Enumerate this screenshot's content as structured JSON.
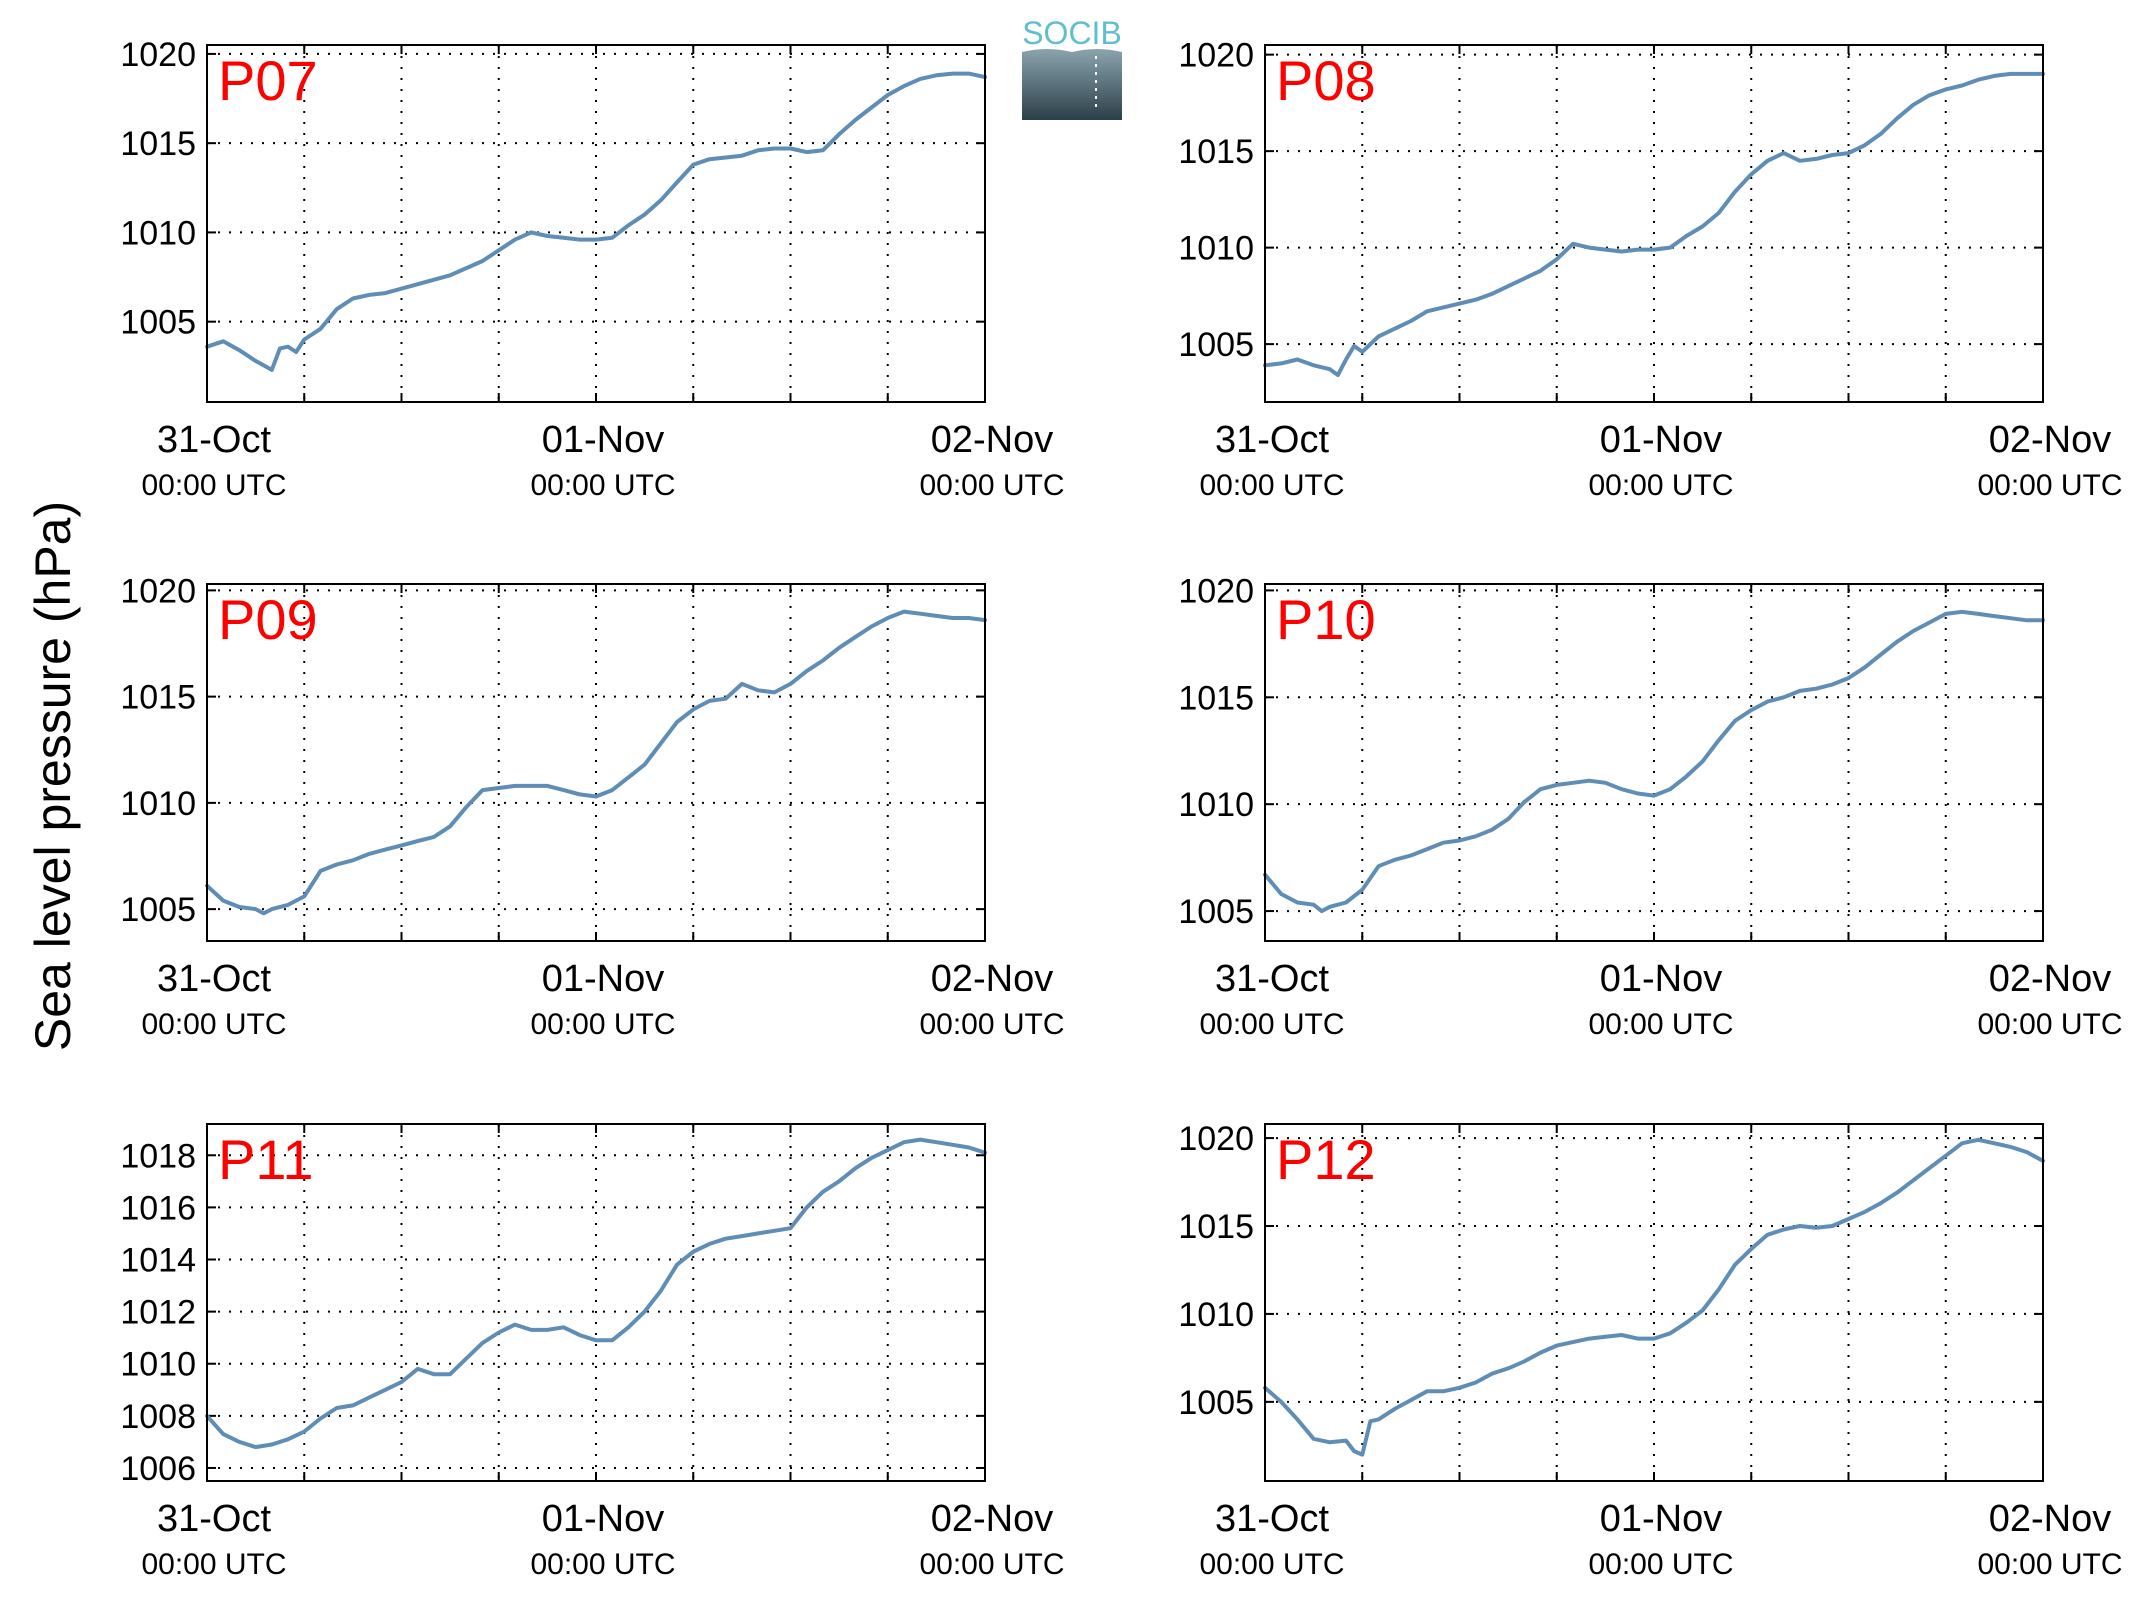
{
  "ylabel": "Sea level pressure (hPa)",
  "logo": {
    "text": "SOCIB"
  },
  "colors": {
    "line": "#5f8db5",
    "station_label": "#ff0000",
    "axis": "#000000",
    "grid": "#000000",
    "logo_text": "#5fbfd0",
    "logo_top": "#8aa4ad",
    "logo_bottom": "#2c3f49"
  },
  "chart_data": [
    {
      "type": "line",
      "station": "P07",
      "x_ticks": [
        {
          "date": "31-Oct",
          "time": "00:00 UTC"
        },
        {
          "date": "01-Nov",
          "time": "00:00 UTC"
        },
        {
          "date": "02-Nov",
          "time": "00:00 UTC"
        }
      ],
      "xlim_hours": [
        0,
        48
      ],
      "ylim": [
        1000.5,
        1020.5
      ],
      "yticks": [
        1005,
        1010,
        1015,
        1020
      ],
      "grid": true,
      "hours": [
        0,
        1,
        2,
        3,
        4,
        4.5,
        5,
        5.5,
        6,
        7,
        8,
        9,
        10,
        11,
        13,
        15,
        17,
        19,
        20,
        21,
        22,
        23,
        24,
        25,
        26,
        27,
        28,
        29,
        30,
        31,
        32,
        33,
        34,
        35,
        36,
        37,
        38,
        39,
        40,
        41,
        42,
        43,
        44,
        45,
        46,
        47,
        48
      ],
      "values": [
        1003.6,
        1003.9,
        1003.4,
        1002.8,
        1002.3,
        1003.5,
        1003.6,
        1003.3,
        1004.0,
        1004.6,
        1005.7,
        1006.3,
        1006.5,
        1006.6,
        1007.1,
        1007.6,
        1008.4,
        1009.6,
        1010.0,
        1009.8,
        1009.7,
        1009.6,
        1009.6,
        1009.7,
        1010.4,
        1011.0,
        1011.8,
        1012.8,
        1013.8,
        1014.1,
        1014.2,
        1014.3,
        1014.6,
        1014.7,
        1014.7,
        1014.5,
        1014.6,
        1015.5,
        1016.3,
        1017.0,
        1017.7,
        1018.2,
        1018.6,
        1018.8,
        1018.9,
        1018.9,
        1018.7
      ]
    },
    {
      "type": "line",
      "station": "P08",
      "x_ticks": [
        {
          "date": "31-Oct",
          "time": "00:00 UTC"
        },
        {
          "date": "01-Nov",
          "time": "00:00 UTC"
        },
        {
          "date": "02-Nov",
          "time": "00:00 UTC"
        }
      ],
      "xlim_hours": [
        0,
        48
      ],
      "ylim": [
        1002,
        1020.5
      ],
      "yticks": [
        1005,
        1010,
        1015,
        1020
      ],
      "grid": true,
      "hours": [
        0,
        1,
        2,
        3,
        4,
        4.5,
        5,
        5.5,
        6,
        7,
        8,
        9,
        10,
        11,
        12,
        13,
        14,
        15,
        16,
        17,
        18,
        19,
        20,
        21,
        22,
        23,
        24,
        25,
        26,
        27,
        28,
        29,
        30,
        31,
        32,
        33,
        34,
        35,
        36,
        37,
        38,
        39,
        40,
        41,
        42,
        43,
        44,
        45,
        46,
        47,
        48
      ],
      "values": [
        1003.9,
        1004.0,
        1004.2,
        1003.9,
        1003.7,
        1003.4,
        1004.2,
        1004.9,
        1004.6,
        1005.4,
        1005.8,
        1006.2,
        1006.7,
        1006.9,
        1007.1,
        1007.3,
        1007.6,
        1008.0,
        1008.4,
        1008.8,
        1009.4,
        1010.2,
        1010.0,
        1009.9,
        1009.8,
        1009.9,
        1009.9,
        1010.0,
        1010.6,
        1011.1,
        1011.8,
        1012.9,
        1013.8,
        1014.5,
        1014.9,
        1014.5,
        1014.6,
        1014.8,
        1014.9,
        1015.3,
        1015.9,
        1016.7,
        1017.4,
        1017.9,
        1018.2,
        1018.4,
        1018.7,
        1018.9,
        1019.0,
        1019.0,
        1019.0
      ]
    },
    {
      "type": "line",
      "station": "P09",
      "x_ticks": [
        {
          "date": "31-Oct",
          "time": "00:00 UTC"
        },
        {
          "date": "01-Nov",
          "time": "00:00 UTC"
        },
        {
          "date": "02-Nov",
          "time": "00:00 UTC"
        }
      ],
      "xlim_hours": [
        0,
        48
      ],
      "ylim": [
        1003.5,
        1020.3
      ],
      "yticks": [
        1005,
        1010,
        1015,
        1020
      ],
      "grid": true,
      "hours": [
        0,
        1,
        2,
        3,
        3.5,
        4,
        5,
        6,
        7,
        8,
        9,
        10,
        11,
        12,
        13,
        14,
        15,
        16,
        17,
        18,
        19,
        20,
        21,
        22,
        23,
        24,
        25,
        26,
        27,
        28,
        29,
        30,
        31,
        32,
        33,
        34,
        35,
        36,
        37,
        38,
        39,
        40,
        41,
        42,
        43,
        44,
        45,
        46,
        47,
        48
      ],
      "values": [
        1006.1,
        1005.4,
        1005.1,
        1005.0,
        1004.8,
        1005.0,
        1005.2,
        1005.6,
        1006.8,
        1007.1,
        1007.3,
        1007.6,
        1007.8,
        1008.0,
        1008.2,
        1008.4,
        1008.9,
        1009.8,
        1010.6,
        1010.7,
        1010.8,
        1010.8,
        1010.8,
        1010.6,
        1010.4,
        1010.3,
        1010.6,
        1011.2,
        1011.8,
        1012.8,
        1013.8,
        1014.4,
        1014.8,
        1014.9,
        1015.6,
        1015.3,
        1015.2,
        1015.6,
        1016.2,
        1016.7,
        1017.3,
        1017.8,
        1018.3,
        1018.7,
        1019.0,
        1018.9,
        1018.8,
        1018.7,
        1018.7,
        1018.6
      ]
    },
    {
      "type": "line",
      "station": "P10",
      "x_ticks": [
        {
          "date": "31-Oct",
          "time": "00:00 UTC"
        },
        {
          "date": "01-Nov",
          "time": "00:00 UTC"
        },
        {
          "date": "02-Nov",
          "time": "00:00 UTC"
        }
      ],
      "xlim_hours": [
        0,
        48
      ],
      "ylim": [
        1003.6,
        1020.3
      ],
      "yticks": [
        1005,
        1010,
        1015,
        1020
      ],
      "grid": true,
      "hours": [
        0,
        1,
        2,
        3,
        3.5,
        4,
        5,
        6,
        7,
        8,
        9,
        10,
        11,
        12,
        13,
        14,
        15,
        16,
        17,
        18,
        19,
        20,
        21,
        22,
        23,
        24,
        25,
        26,
        27,
        28,
        29,
        30,
        31,
        32,
        33,
        34,
        35,
        36,
        37,
        38,
        39,
        40,
        41,
        42,
        43,
        44,
        45,
        46,
        47,
        48
      ],
      "values": [
        1006.7,
        1005.8,
        1005.4,
        1005.3,
        1005.0,
        1005.2,
        1005.4,
        1006.0,
        1007.1,
        1007.4,
        1007.6,
        1007.9,
        1008.2,
        1008.3,
        1008.5,
        1008.8,
        1009.3,
        1010.1,
        1010.7,
        1010.9,
        1011.0,
        1011.1,
        1011.0,
        1010.7,
        1010.5,
        1010.4,
        1010.7,
        1011.3,
        1012.0,
        1013.0,
        1013.9,
        1014.4,
        1014.8,
        1015.0,
        1015.3,
        1015.4,
        1015.6,
        1015.9,
        1016.4,
        1017.0,
        1017.6,
        1018.1,
        1018.5,
        1018.9,
        1019.0,
        1018.9,
        1018.8,
        1018.7,
        1018.6,
        1018.6
      ]
    },
    {
      "type": "line",
      "station": "P11",
      "x_ticks": [
        {
          "date": "31-Oct",
          "time": "00:00 UTC"
        },
        {
          "date": "01-Nov",
          "time": "00:00 UTC"
        },
        {
          "date": "02-Nov",
          "time": "00:00 UTC"
        }
      ],
      "xlim_hours": [
        0,
        48
      ],
      "ylim": [
        1005.5,
        1019.2
      ],
      "yticks": [
        1006,
        1008,
        1010,
        1012,
        1014,
        1016,
        1018
      ],
      "grid": true,
      "hours": [
        0,
        1,
        2,
        3,
        4,
        5,
        6,
        7,
        8,
        9,
        10,
        11,
        12,
        13,
        14,
        15,
        16,
        17,
        18,
        19,
        20,
        21,
        22,
        23,
        24,
        25,
        26,
        27,
        28,
        29,
        30,
        31,
        32,
        33,
        34,
        35,
        36,
        37,
        38,
        39,
        40,
        41,
        42,
        43,
        44,
        45,
        46,
        47,
        48
      ],
      "values": [
        1008.0,
        1007.3,
        1007.0,
        1006.8,
        1006.9,
        1007.1,
        1007.4,
        1007.9,
        1008.3,
        1008.4,
        1008.7,
        1009.0,
        1009.3,
        1009.8,
        1009.6,
        1009.6,
        1010.2,
        1010.8,
        1011.2,
        1011.5,
        1011.3,
        1011.3,
        1011.4,
        1011.1,
        1010.9,
        1010.9,
        1011.4,
        1012.0,
        1012.8,
        1013.8,
        1014.3,
        1014.6,
        1014.8,
        1014.9,
        1015.0,
        1015.1,
        1015.2,
        1016.0,
        1016.6,
        1017.0,
        1017.5,
        1017.9,
        1018.2,
        1018.5,
        1018.6,
        1018.5,
        1018.4,
        1018.3,
        1018.1
      ]
    },
    {
      "type": "line",
      "station": "P12",
      "x_ticks": [
        {
          "date": "31-Oct",
          "time": "00:00 UTC"
        },
        {
          "date": "01-Nov",
          "time": "00:00 UTC"
        },
        {
          "date": "02-Nov",
          "time": "00:00 UTC"
        }
      ],
      "xlim_hours": [
        0,
        48
      ],
      "ylim": [
        1000.5,
        1020.8
      ],
      "yticks": [
        1005,
        1010,
        1015,
        1020
      ],
      "grid": true,
      "hours": [
        0,
        1,
        2,
        3,
        4,
        5,
        5.5,
        6,
        6.5,
        7,
        8,
        9,
        10,
        11,
        12,
        13,
        14,
        15,
        16,
        17,
        18,
        19,
        20,
        21,
        22,
        23,
        24,
        25,
        26,
        27,
        28,
        29,
        30,
        31,
        32,
        33,
        34,
        35,
        36,
        37,
        38,
        39,
        40,
        41,
        42,
        43,
        44,
        45,
        46,
        47,
        48
      ],
      "values": [
        1005.8,
        1005.0,
        1004.0,
        1002.9,
        1002.7,
        1002.8,
        1002.2,
        1002.0,
        1003.9,
        1004.0,
        1004.6,
        1005.1,
        1005.6,
        1005.6,
        1005.8,
        1006.1,
        1006.6,
        1006.9,
        1007.3,
        1007.8,
        1008.2,
        1008.4,
        1008.6,
        1008.7,
        1008.8,
        1008.6,
        1008.6,
        1008.9,
        1009.5,
        1010.2,
        1011.4,
        1012.8,
        1013.7,
        1014.5,
        1014.8,
        1015.0,
        1014.9,
        1015.0,
        1015.4,
        1015.8,
        1016.3,
        1016.9,
        1017.6,
        1018.3,
        1019.0,
        1019.7,
        1019.9,
        1019.7,
        1019.5,
        1019.2,
        1018.7
      ]
    }
  ]
}
